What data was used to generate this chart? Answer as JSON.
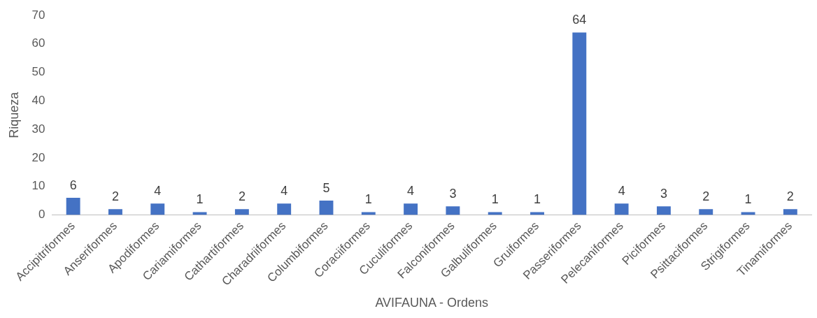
{
  "chart_data": {
    "type": "bar",
    "xlabel": "AVIFAUNA - Ordens",
    "ylabel": "Riqueza",
    "categories": [
      "Accipitriformes",
      "Anseriformes",
      "Apodiformes",
      "Cariamiformes",
      "Cathartiformes",
      "Charadriiformes",
      "Columbiformes",
      "Coraciiformes",
      "Cuculiformes",
      "Falconiformes",
      "Galbuliformes",
      "Gruiformes",
      "Passeriformes",
      "Pelecaniformes",
      "Piciformes",
      "Psittaciformes",
      "Strigiformes",
      "Tinamiformes"
    ],
    "values": [
      6,
      2,
      4,
      1,
      2,
      4,
      5,
      1,
      4,
      3,
      1,
      1,
      64,
      4,
      3,
      2,
      1,
      2
    ],
    "color": "#4472c4",
    "ylim": [
      0,
      70
    ],
    "yticks": [
      0,
      10,
      20,
      30,
      40,
      50,
      60,
      70
    ],
    "grid": false,
    "legend": false,
    "data_labels": true
  }
}
